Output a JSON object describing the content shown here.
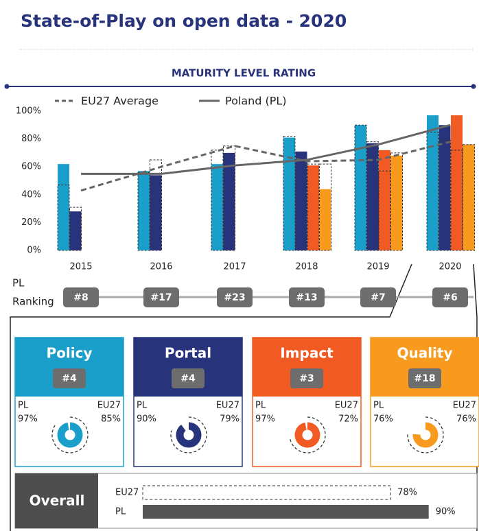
{
  "title": "State-of-Play on open data - 2020",
  "section_title": "MATURITY LEVEL RATING",
  "chart_data": {
    "type": "bar",
    "categories": [
      "2015",
      "2016",
      "2017",
      "2018",
      "2019",
      "2020"
    ],
    "ylim": [
      0,
      100
    ],
    "yticks": [
      {
        "value": 0,
        "label": "0%"
      },
      {
        "value": 20,
        "label": "20%"
      },
      {
        "value": 40,
        "label": "40%"
      },
      {
        "value": 60,
        "label": "60%"
      },
      {
        "value": 80,
        "label": "80%"
      },
      {
        "value": 100,
        "label": "100%"
      }
    ],
    "series": [
      {
        "name": "Policy",
        "color": "#1a9fcb",
        "values": [
          62,
          57,
          62,
          81,
          90,
          97
        ],
        "eu27_values": [
          47,
          56,
          72,
          82,
          90,
          85
        ]
      },
      {
        "name": "Portal",
        "color": "#27337a",
        "values": [
          28,
          54,
          70,
          71,
          77,
          90
        ],
        "eu27_values": [
          31,
          65,
          75,
          65,
          78,
          79
        ]
      },
      {
        "name": "Impact",
        "color": "#f15a22",
        "values": [
          null,
          null,
          null,
          61,
          72,
          97
        ],
        "eu27_values": [
          null,
          null,
          null,
          62,
          57,
          72
        ]
      },
      {
        "name": "Quality",
        "color": "#f79a1e",
        "values": [
          null,
          null,
          null,
          44,
          68,
          76
        ],
        "eu27_values": [
          null,
          null,
          null,
          62,
          70,
          76
        ]
      }
    ],
    "lines": [
      {
        "name": "EU27 Average",
        "color": "#666666",
        "dashed": true,
        "values": [
          43,
          60,
          75,
          64,
          65,
          78
        ]
      },
      {
        "name": "Poland (PL)",
        "color": "#666666",
        "dashed": false,
        "values": [
          55,
          55,
          61,
          65,
          76,
          90
        ]
      }
    ]
  },
  "ranking": {
    "label_lines": [
      "PL",
      "Ranking"
    ],
    "values": [
      "#8",
      "#17",
      "#23",
      "#13",
      "#7",
      "#6"
    ]
  },
  "dimensions": [
    {
      "rank": "#4",
      "pl_label": "PL",
      "eu_label": "EU27",
      "pl": 97,
      "pl_label_value": "97%",
      "eu": 85,
      "eu_label_value": "85%"
    },
    {
      "rank": "#4",
      "pl_label": "PL",
      "eu_label": "EU27",
      "pl": 90,
      "pl_label_value": "90%",
      "eu": 79,
      "eu_label_value": "79%"
    },
    {
      "rank": "#3",
      "pl_label": "PL",
      "eu_label": "EU27",
      "pl": 97,
      "pl_label_value": "97%",
      "eu": 72,
      "eu_label_value": "72%"
    },
    {
      "rank": "#18",
      "pl_label": "PL",
      "eu_label": "EU27",
      "pl": 76,
      "pl_label_value": "76%",
      "eu": 76,
      "eu_label_value": "76%"
    }
  ],
  "overall": {
    "label": "Overall",
    "rows": [
      {
        "label": "EU27",
        "value": 78,
        "value_label": "78%"
      },
      {
        "label": "PL",
        "value": 90,
        "value_label": "90%"
      }
    ]
  }
}
